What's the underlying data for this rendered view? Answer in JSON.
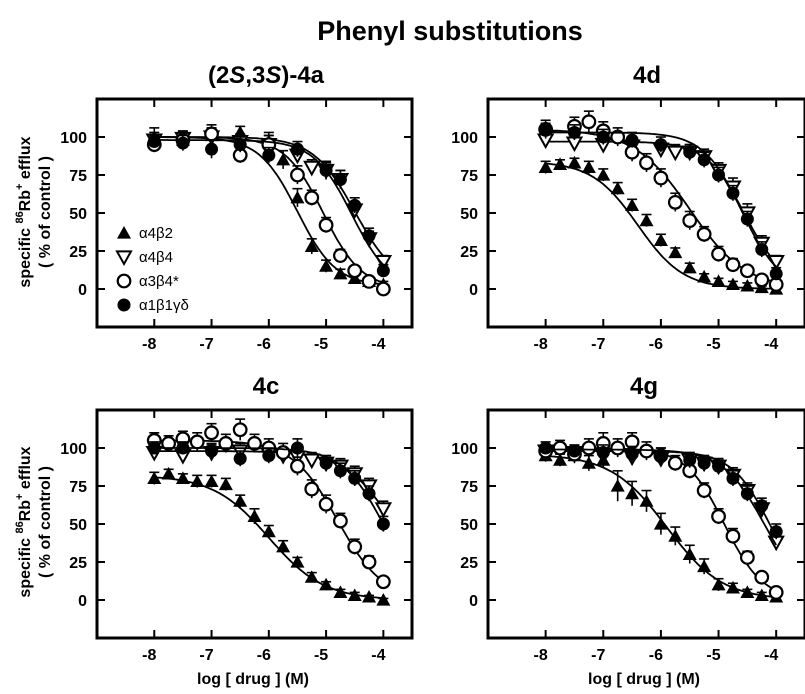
{
  "figure": {
    "title": "Phenyl substitutions",
    "ylabel_line1_prefix": "specific ",
    "ylabel_line1_sup1": "86",
    "ylabel_line1_mid": "Rb",
    "ylabel_line1_sup2": "+",
    "ylabel_line1_suffix": " efflux",
    "ylabel_line2": "( % of control )",
    "xlabel": "log [ drug ] (M)"
  },
  "legend": [
    {
      "label": "α4β2",
      "marker": "triangle-up-filled"
    },
    {
      "label": "α4β4",
      "marker": "triangle-down-open"
    },
    {
      "label": "α3β4*",
      "marker": "circle-open"
    },
    {
      "label": "α1β1γδ",
      "marker": "circle-filled"
    }
  ],
  "chart_data": [
    {
      "type": "scatter",
      "title_parts": [
        "(2",
        "S",
        ",3",
        "S",
        ")-4a"
      ],
      "title": "(2S,3S)-4a",
      "xlabel": "",
      "ylabel": "specific 86Rb+ efflux ( % of control )",
      "xlim": [
        -9,
        -3.5
      ],
      "ylim": [
        -25,
        125
      ],
      "xticks": [
        -8,
        -7,
        -6,
        -5,
        -4
      ],
      "yticks": [
        0,
        25,
        50,
        75,
        100
      ],
      "series": [
        {
          "name": "α4β2",
          "marker": "triangle-up-filled",
          "x": [
            -8,
            -7.5,
            -7,
            -6.5,
            -6,
            -5.75,
            -5.5,
            -5.25,
            -5,
            -4.75,
            -4.5,
            -4.25,
            -4
          ],
          "y": [
            100,
            98,
            101,
            103,
            97,
            85,
            60,
            28,
            15,
            10,
            7,
            5,
            3
          ],
          "err": [
            6,
            5,
            5,
            4,
            6,
            6,
            6,
            5,
            4,
            3,
            3,
            3,
            2
          ],
          "fit": {
            "top": 100,
            "bottom": 2,
            "log_ic50": -5.5,
            "hill": 1.3
          }
        },
        {
          "name": "α4β4",
          "marker": "triangle-down-open",
          "x": [
            -8,
            -7.5,
            -7,
            -6.5,
            -6,
            -5.5,
            -5.25,
            -5,
            -4.75,
            -4.5,
            -4.25,
            -4
          ],
          "y": [
            98,
            99,
            100,
            97,
            95,
            88,
            80,
            78,
            72,
            52,
            33,
            18
          ],
          "err": [
            5,
            4,
            5,
            5,
            6,
            5,
            5,
            6,
            6,
            5,
            5,
            4
          ],
          "fit": {
            "top": 100,
            "bottom": 2,
            "log_ic50": -4.5,
            "hill": 1.2
          }
        },
        {
          "name": "α3β4*",
          "marker": "circle-open",
          "x": [
            -8,
            -7.5,
            -7,
            -6.5,
            -6,
            -5.5,
            -5.25,
            -5,
            -4.75,
            -4.5,
            -4.25,
            -4
          ],
          "y": [
            95,
            98,
            102,
            88,
            95,
            75,
            60,
            42,
            22,
            12,
            5,
            0
          ],
          "err": [
            5,
            6,
            6,
            5,
            6,
            6,
            5,
            5,
            4,
            3,
            3,
            2
          ],
          "fit": {
            "top": 100,
            "bottom": 0,
            "log_ic50": -5.05,
            "hill": 1.3
          }
        },
        {
          "name": "α1β1γδ",
          "marker": "circle-filled",
          "x": [
            -8,
            -7.5,
            -7,
            -6.5,
            -6,
            -5.5,
            -5,
            -4.75,
            -4.5,
            -4.25,
            -4
          ],
          "y": [
            97,
            96,
            92,
            95,
            88,
            92,
            78,
            72,
            55,
            35,
            12
          ],
          "err": [
            4,
            5,
            6,
            5,
            5,
            5,
            5,
            6,
            5,
            5,
            4
          ],
          "fit": {
            "top": 98,
            "bottom": 0,
            "log_ic50": -4.55,
            "hill": 1.3
          }
        }
      ]
    },
    {
      "type": "scatter",
      "title_parts": [
        "4d"
      ],
      "title": "4d",
      "xlim": [
        -9,
        -3.5
      ],
      "ylim": [
        -25,
        125
      ],
      "xticks": [
        -8,
        -7,
        -6,
        -5,
        -4
      ],
      "yticks": [
        0,
        25,
        50,
        75,
        100
      ],
      "series": [
        {
          "name": "α4β2",
          "marker": "triangle-up-filled",
          "x": [
            -8,
            -7.75,
            -7.5,
            -7.25,
            -7,
            -6.75,
            -6.5,
            -6.25,
            -6,
            -5.75,
            -5.5,
            -5.25,
            -5,
            -4.75,
            -4.5,
            -4.25,
            -4
          ],
          "y": [
            80,
            82,
            83,
            80,
            75,
            66,
            55,
            45,
            32,
            24,
            14,
            8,
            5,
            3,
            2,
            1,
            0
          ],
          "err": [
            4,
            3,
            3,
            4,
            4,
            4,
            4,
            4,
            4,
            3,
            3,
            2,
            2,
            2,
            2,
            1,
            1
          ],
          "fit": {
            "top": 84,
            "bottom": 0,
            "log_ic50": -6.4,
            "hill": 1.1
          }
        },
        {
          "name": "α4β4",
          "marker": "triangle-down-open",
          "x": [
            -8,
            -7.5,
            -7,
            -6.5,
            -6,
            -5.75,
            -5.5,
            -5.25,
            -5,
            -4.75,
            -4.5,
            -4.25,
            -4
          ],
          "y": [
            98,
            96,
            95,
            94,
            92,
            90,
            90,
            87,
            78,
            67,
            50,
            30,
            18
          ],
          "err": [
            5,
            5,
            5,
            5,
            5,
            5,
            5,
            5,
            5,
            6,
            6,
            5,
            4
          ],
          "fit": {
            "top": 97,
            "bottom": 2,
            "log_ic50": -4.55,
            "hill": 1.3
          }
        },
        {
          "name": "α3β4*",
          "marker": "circle-open",
          "x": [
            -8,
            -7.5,
            -7.25,
            -7,
            -6.75,
            -6.5,
            -6.25,
            -6,
            -5.75,
            -5.5,
            -5.25,
            -5,
            -4.75,
            -4.5,
            -4.25,
            -4
          ],
          "y": [
            105,
            107,
            110,
            104,
            100,
            90,
            83,
            73,
            57,
            45,
            36,
            23,
            16,
            12,
            6,
            3
          ],
          "err": [
            6,
            6,
            7,
            6,
            6,
            6,
            6,
            6,
            6,
            6,
            5,
            5,
            4,
            3,
            3,
            2
          ],
          "fit": {
            "top": 105,
            "bottom": 0,
            "log_ic50": -5.5,
            "hill": 0.9
          }
        },
        {
          "name": "α1β1γδ",
          "marker": "circle-filled",
          "x": [
            -8,
            -7.5,
            -7,
            -6.5,
            -6,
            -5.5,
            -5.25,
            -5,
            -4.75,
            -4.5,
            -4.25,
            -4
          ],
          "y": [
            105,
            103,
            100,
            98,
            95,
            90,
            85,
            75,
            63,
            46,
            26,
            10
          ],
          "err": [
            4,
            5,
            5,
            5,
            5,
            5,
            5,
            5,
            5,
            5,
            5,
            4
          ],
          "fit": {
            "top": 103,
            "bottom": 0,
            "log_ic50": -4.6,
            "hill": 1.3
          }
        }
      ]
    },
    {
      "type": "scatter",
      "title_parts": [
        "4c"
      ],
      "title": "4c",
      "xlim": [
        -9,
        -3.5
      ],
      "ylim": [
        -25,
        125
      ],
      "xticks": [
        -8,
        -7,
        -6,
        -5,
        -4
      ],
      "yticks": [
        0,
        25,
        50,
        75,
        100
      ],
      "series": [
        {
          "name": "α4β2",
          "marker": "triangle-up-filled",
          "x": [
            -8,
            -7.75,
            -7.5,
            -7.25,
            -7,
            -6.75,
            -6.5,
            -6.25,
            -6,
            -5.75,
            -5.5,
            -5.25,
            -5,
            -4.75,
            -4.5,
            -4.25,
            -4
          ],
          "y": [
            80,
            83,
            80,
            78,
            78,
            76,
            65,
            55,
            45,
            35,
            25,
            15,
            10,
            5,
            3,
            2,
            0
          ],
          "err": [
            4,
            3,
            3,
            4,
            4,
            4,
            4,
            5,
            4,
            4,
            3,
            3,
            2,
            2,
            2,
            1,
            1
          ],
          "fit": {
            "top": 82,
            "bottom": 0,
            "log_ic50": -6.0,
            "hill": 0.9
          }
        },
        {
          "name": "α4β4",
          "marker": "triangle-down-open",
          "x": [
            -8,
            -7.5,
            -7,
            -6.5,
            -6,
            -5.75,
            -5.5,
            -5.25,
            -5,
            -4.75,
            -4.5,
            -4.25,
            -4
          ],
          "y": [
            97,
            95,
            97,
            98,
            96,
            95,
            94,
            92,
            90,
            88,
            83,
            75,
            60
          ],
          "err": [
            4,
            4,
            5,
            5,
            5,
            5,
            5,
            5,
            5,
            5,
            5,
            5,
            5
          ],
          "fit": {
            "top": 98,
            "bottom": 0,
            "log_ic50": -3.8,
            "hill": 1.0
          }
        },
        {
          "name": "α3β4*",
          "marker": "circle-open",
          "x": [
            -8,
            -7.75,
            -7.5,
            -7.25,
            -7,
            -6.75,
            -6.5,
            -6.25,
            -6,
            -5.75,
            -5.5,
            -5.25,
            -5,
            -4.75,
            -4.5,
            -4.25,
            -4
          ],
          "y": [
            105,
            103,
            106,
            104,
            110,
            103,
            112,
            103,
            100,
            97,
            88,
            73,
            63,
            52,
            35,
            25,
            12
          ],
          "err": [
            5,
            5,
            5,
            6,
            6,
            6,
            7,
            6,
            6,
            6,
            6,
            6,
            6,
            5,
            5,
            4,
            3
          ],
          "fit": {
            "top": 105,
            "bottom": 0,
            "log_ic50": -4.8,
            "hill": 1.1
          }
        },
        {
          "name": "α1β1γδ",
          "marker": "circle-filled",
          "x": [
            -8,
            -7.5,
            -7,
            -6.5,
            -6,
            -5.5,
            -5,
            -4.75,
            -4.5,
            -4.25,
            -4
          ],
          "y": [
            100,
            100,
            98,
            93,
            95,
            100,
            90,
            85,
            80,
            70,
            50
          ],
          "err": [
            4,
            4,
            5,
            5,
            5,
            6,
            5,
            5,
            5,
            5,
            5
          ],
          "fit": {
            "top": 100,
            "bottom": 0,
            "log_ic50": -4.0,
            "hill": 1.2
          }
        }
      ]
    },
    {
      "type": "scatter",
      "title_parts": [
        "4g"
      ],
      "title": "4g",
      "xlim": [
        -9,
        -3.5
      ],
      "ylim": [
        -25,
        125
      ],
      "xticks": [
        -8,
        -7,
        -6,
        -5,
        -4
      ],
      "yticks": [
        0,
        25,
        50,
        75,
        100
      ],
      "series": [
        {
          "name": "α4β2",
          "marker": "triangle-up-filled",
          "x": [
            -8,
            -7.75,
            -7.5,
            -7.25,
            -7,
            -6.75,
            -6.5,
            -6.25,
            -6,
            -5.75,
            -5.5,
            -5.25,
            -5,
            -4.75,
            -4.5,
            -4.25,
            -4
          ],
          "y": [
            95,
            92,
            95,
            90,
            92,
            75,
            70,
            65,
            50,
            42,
            30,
            22,
            10,
            8,
            5,
            3,
            2
          ],
          "err": [
            4,
            4,
            5,
            5,
            5,
            10,
            8,
            7,
            7,
            6,
            6,
            5,
            4,
            3,
            2,
            2,
            1
          ],
          "fit": {
            "top": 96,
            "bottom": 0,
            "log_ic50": -5.9,
            "hill": 0.9
          }
        },
        {
          "name": "α4β4",
          "marker": "triangle-down-open",
          "x": [
            -8,
            -7.5,
            -7,
            -6.5,
            -6,
            -5.5,
            -5.25,
            -5,
            -4.75,
            -4.5,
            -4.25,
            -4
          ],
          "y": [
            98,
            97,
            95,
            94,
            93,
            92,
            90,
            88,
            82,
            72,
            60,
            38
          ],
          "err": [
            4,
            4,
            5,
            5,
            5,
            5,
            5,
            5,
            5,
            5,
            5,
            5
          ],
          "fit": {
            "top": 98,
            "bottom": 0,
            "log_ic50": -4.1,
            "hill": 1.3
          }
        },
        {
          "name": "α3β4*",
          "marker": "circle-open",
          "x": [
            -8,
            -7.75,
            -7.5,
            -7.25,
            -7,
            -6.75,
            -6.5,
            -6.25,
            -6,
            -5.75,
            -5.5,
            -5.25,
            -5,
            -4.75,
            -4.5,
            -4.25,
            -4
          ],
          "y": [
            98,
            100,
            96,
            100,
            103,
            100,
            104,
            98,
            95,
            90,
            85,
            72,
            55,
            42,
            28,
            15,
            5
          ],
          "err": [
            4,
            5,
            5,
            6,
            7,
            6,
            6,
            6,
            5,
            5,
            5,
            5,
            5,
            5,
            4,
            3,
            2
          ],
          "fit": {
            "top": 100,
            "bottom": 0,
            "log_ic50": -4.9,
            "hill": 1.3
          }
        },
        {
          "name": "α1β1γδ",
          "marker": "circle-filled",
          "x": [
            -8,
            -7.5,
            -7,
            -6.5,
            -6,
            -5.5,
            -5.25,
            -5,
            -4.75,
            -4.5,
            -4.25,
            -4
          ],
          "y": [
            100,
            98,
            97,
            96,
            95,
            92,
            90,
            88,
            80,
            70,
            62,
            45
          ],
          "err": [
            4,
            4,
            5,
            5,
            5,
            5,
            5,
            5,
            5,
            5,
            5,
            5
          ],
          "fit": {
            "top": 99,
            "bottom": 0,
            "log_ic50": -4.2,
            "hill": 1.2
          }
        }
      ]
    }
  ]
}
